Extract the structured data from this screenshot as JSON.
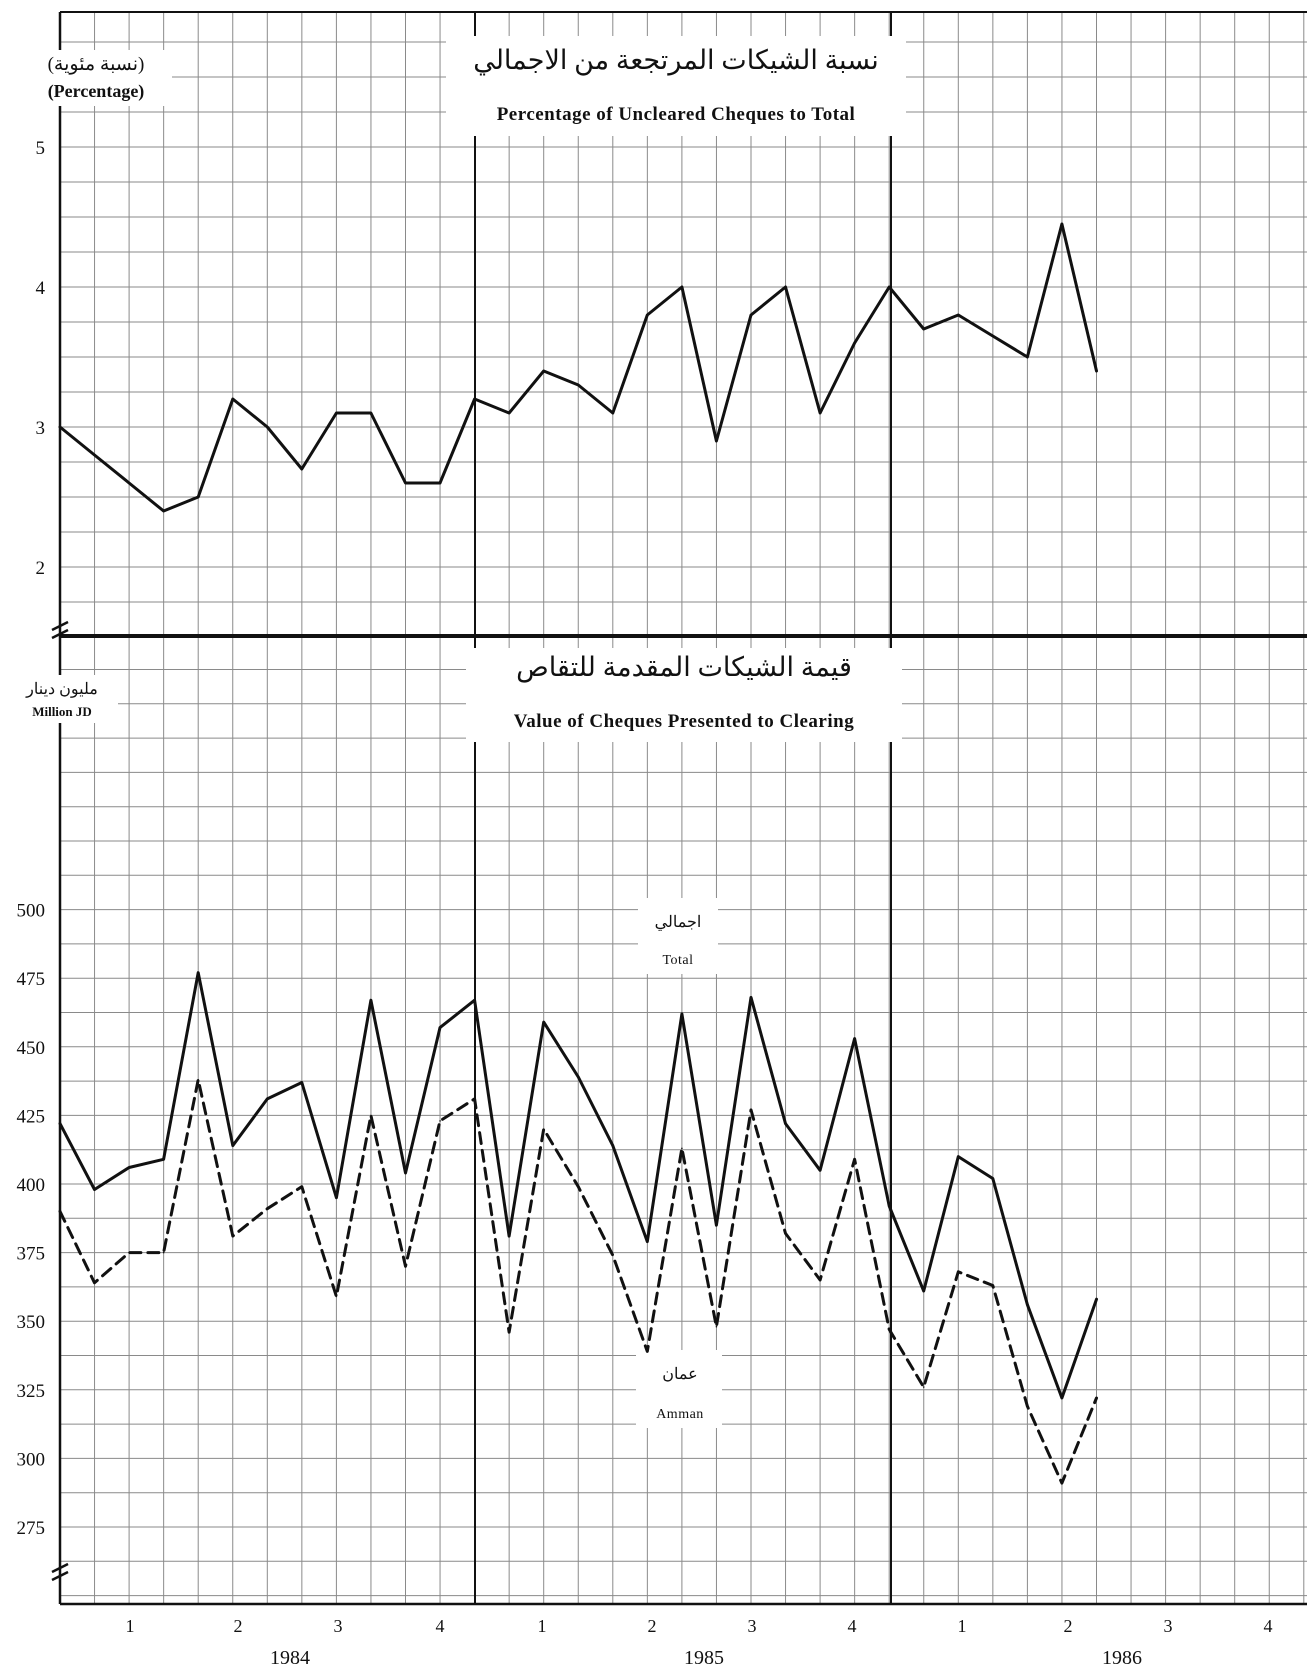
{
  "chart_data": [
    {
      "type": "line",
      "title_ar": "نسبة الشيكات المرتجعة من الاجمالي",
      "title": "Percentage of Uncleared Cheques to Total",
      "ylabel_ar": "(نسبة مئوية)",
      "ylabel": "(Percentage)",
      "ylim": [
        1.5,
        5.5
      ],
      "yticks": [
        2,
        3,
        4,
        5
      ],
      "grid": true,
      "series": [
        {
          "name": "",
          "style": "solid",
          "values": [
            3.0,
            2.8,
            2.6,
            2.4,
            2.5,
            3.2,
            3.0,
            2.7,
            3.1,
            3.1,
            2.6,
            2.6,
            3.2,
            3.1,
            3.4,
            3.3,
            3.1,
            3.8,
            4.0,
            2.9,
            3.8,
            4.0,
            3.1,
            3.6,
            4.0,
            3.7,
            3.8,
            3.65,
            3.5,
            4.45,
            3.4
          ]
        }
      ]
    },
    {
      "type": "line",
      "title_ar": "قيمة الشيكات المقدمة للتقاص",
      "title": "Value of Cheques Presented to Clearing",
      "ylabel_ar": "مليون دينار",
      "ylabel": "Million JD",
      "ylim": [
        262.5,
        525
      ],
      "yticks": [
        275,
        300,
        325,
        350,
        375,
        400,
        425,
        450,
        475,
        500
      ],
      "grid": true,
      "series": [
        {
          "name": "Total",
          "name_ar": "اجمالي",
          "style": "solid",
          "values": [
            422,
            398,
            406,
            409,
            477,
            414,
            431,
            437,
            395,
            467,
            404,
            457,
            467,
            381,
            459,
            439,
            414,
            379,
            462,
            385,
            468,
            422,
            405,
            453,
            392,
            361,
            410,
            402,
            356,
            322,
            358
          ]
        },
        {
          "name": "Amman",
          "name_ar": "عمان",
          "style": "dashed",
          "values": [
            390,
            364,
            375,
            375,
            438,
            381,
            391,
            399,
            359,
            425,
            370,
            423,
            431,
            346,
            420,
            399,
            374,
            339,
            413,
            348,
            427,
            382,
            365,
            409,
            347,
            326,
            368,
            363,
            319,
            291,
            322
          ]
        }
      ]
    }
  ],
  "x_axis": {
    "quarters": [
      "1",
      "2",
      "3",
      "4",
      "1",
      "2",
      "3",
      "4",
      "1",
      "2",
      "3",
      "4"
    ],
    "years": [
      "1984",
      "1985",
      "1986"
    ]
  }
}
